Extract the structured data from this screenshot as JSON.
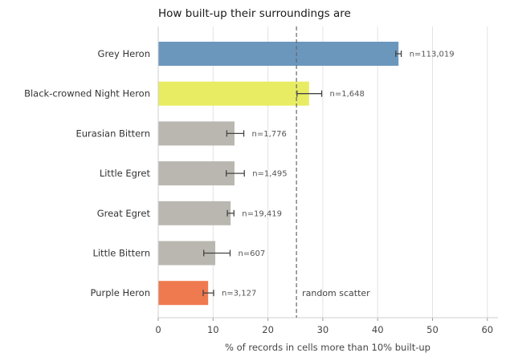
{
  "chart_data": {
    "type": "bar",
    "orientation": "horizontal",
    "title": "How built-up their surroundings are",
    "xlabel": "% of records in cells more than 10% built-up",
    "ylabel": "",
    "xlim": [
      0,
      62
    ],
    "xticks": [
      0,
      10,
      20,
      30,
      40,
      50,
      60
    ],
    "grid": "vertical",
    "categories": [
      "Grey Heron",
      "Black-crowned Night Heron",
      "Eurasian Bittern",
      "Little Egret",
      "Great Egret",
      "Little Bittern",
      "Purple Heron"
    ],
    "values": [
      43.8,
      27.5,
      13.9,
      13.9,
      13.2,
      10.4,
      9.1
    ],
    "error_low": [
      43.3,
      25.3,
      12.5,
      12.4,
      12.6,
      8.3,
      8.2
    ],
    "error_high": [
      44.3,
      29.8,
      15.6,
      15.7,
      13.8,
      13.1,
      10.1
    ],
    "n_labels": [
      "n=113,019",
      "n=1,648",
      "n=1,776",
      "n=1,495",
      "n=19,419",
      "n=607",
      "n=3,127"
    ],
    "colors": [
      "#6b97bd",
      "#e8ec62",
      "#bab7b0",
      "#bab7b0",
      "#bab7b0",
      "#bab7b0",
      "#ef7a50"
    ],
    "reference_line": {
      "x": 25.2,
      "label": "random scatter",
      "style": "dashed"
    }
  }
}
